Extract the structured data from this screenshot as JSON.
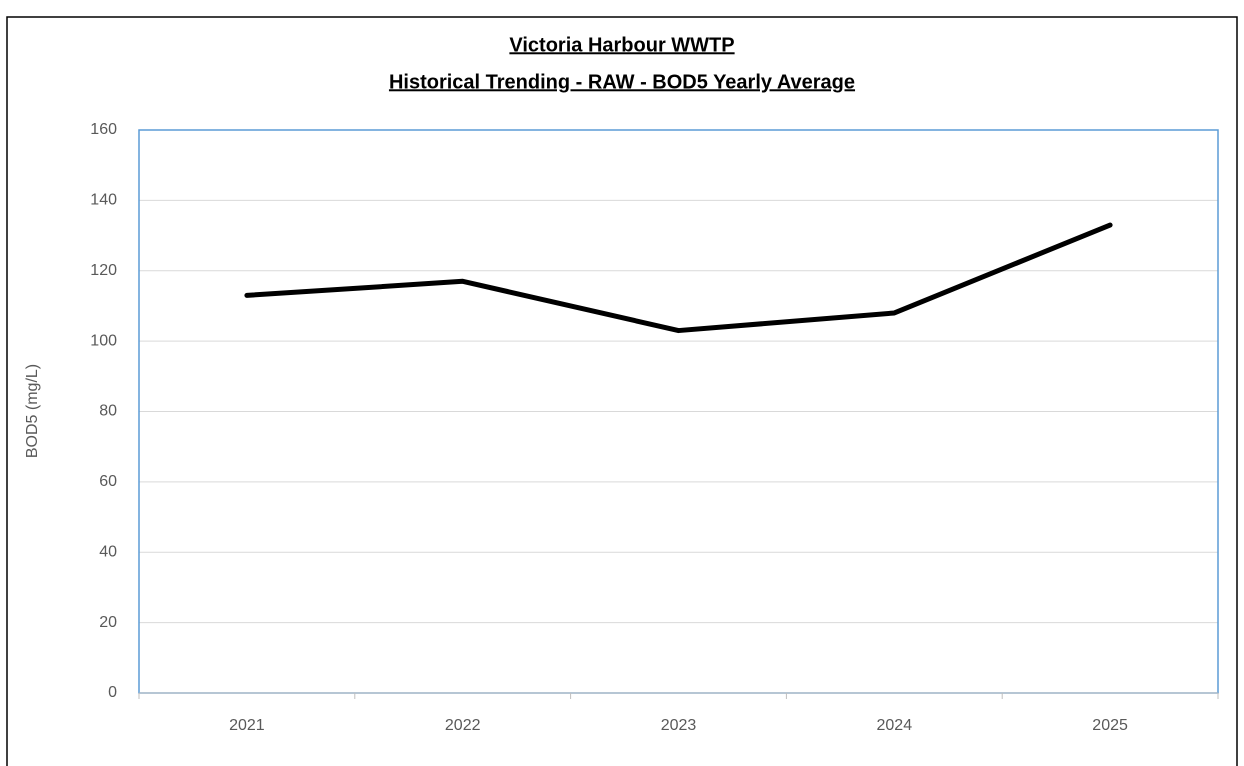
{
  "chart_data": {
    "type": "line",
    "title": "Victoria Harbour WWTP",
    "subtitle": "Historical Trending - RAW - BOD5 Yearly Average",
    "y_label": "BOD5 (mg/L)",
    "categories": [
      "2021",
      "2022",
      "2023",
      "2024",
      "2025"
    ],
    "series": [
      {
        "name": "BOD5",
        "color": "#000000",
        "values": [
          113,
          117,
          103,
          108,
          133
        ]
      }
    ],
    "ylim": [
      0,
      160
    ],
    "yticks": [
      0,
      20,
      40,
      60,
      80,
      100,
      120,
      140,
      160
    ],
    "grid": true
  }
}
